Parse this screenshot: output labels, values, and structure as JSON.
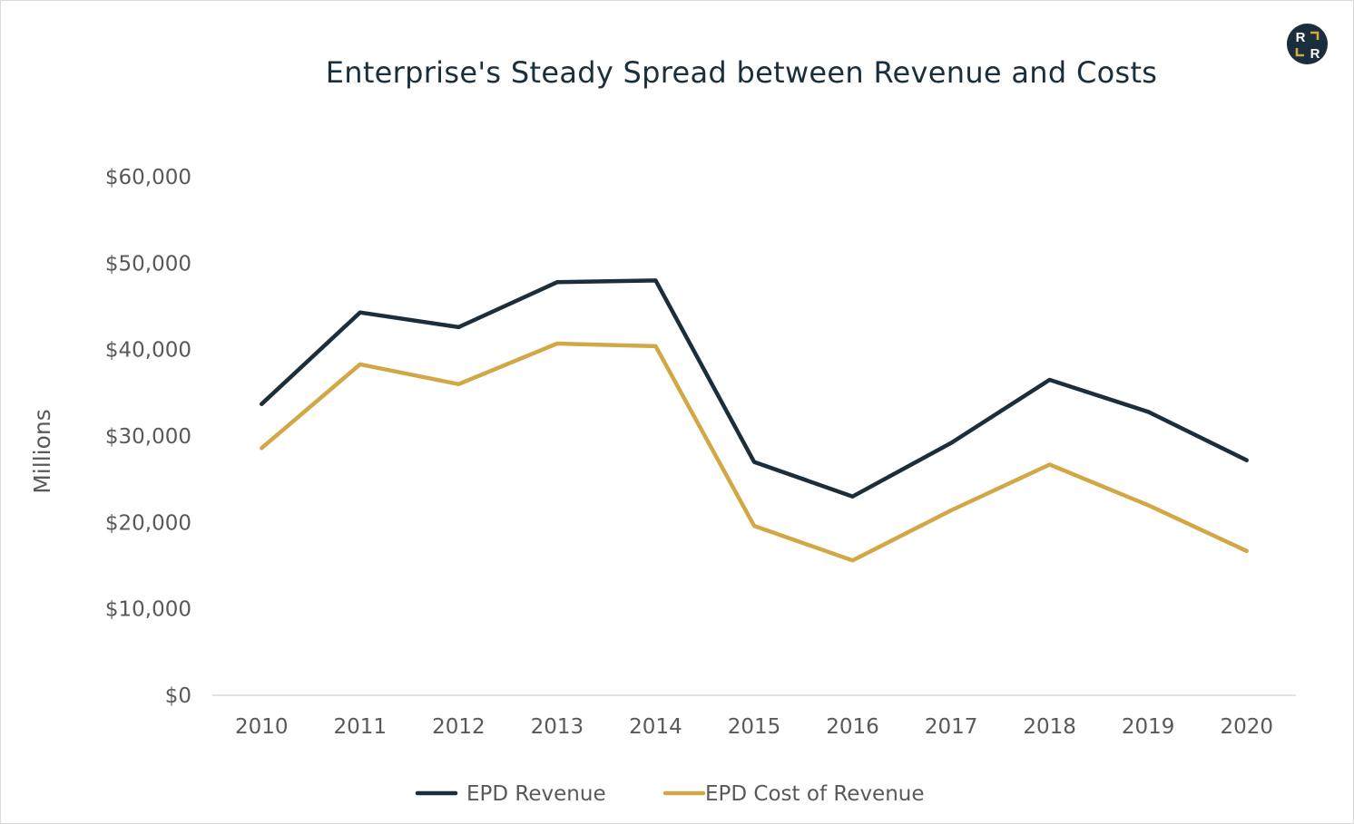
{
  "brand": {
    "logo_letters": [
      "R",
      "R"
    ],
    "logo_bg": "#1a2e3b",
    "logo_accent": "#d1a845",
    "logo_text_color": "#ffffff"
  },
  "chart_data": {
    "type": "line",
    "title": "Enterprise's Steady Spread between Revenue and Costs",
    "xlabel": "",
    "ylabel": "Millions",
    "categories": [
      "2010",
      "2011",
      "2012",
      "2013",
      "2014",
      "2015",
      "2016",
      "2017",
      "2018",
      "2019",
      "2020"
    ],
    "yticks": [
      0,
      10000,
      20000,
      30000,
      40000,
      50000,
      60000
    ],
    "ytick_labels": [
      "$0",
      "$10,000",
      "$20,000",
      "$30,000",
      "$40,000",
      "$50,000",
      "$60,000"
    ],
    "ylim": [
      0,
      60000
    ],
    "grid": false,
    "legend_position": "bottom-center",
    "series": [
      {
        "name": "EPD Revenue",
        "color": "#1a2e3b",
        "values": [
          33700,
          44300,
          42600,
          47800,
          48000,
          27000,
          23000,
          29200,
          36500,
          32800,
          27200
        ]
      },
      {
        "name": "EPD Cost of Revenue",
        "color": "#d1a845",
        "values": [
          28600,
          38300,
          36000,
          40700,
          40400,
          19600,
          15600,
          21400,
          26700,
          22000,
          16700
        ]
      }
    ]
  }
}
